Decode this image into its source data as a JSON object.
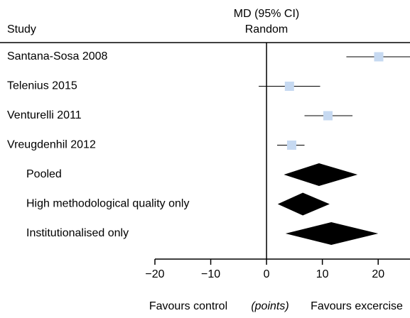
{
  "chart_data": {
    "type": "forest",
    "column_title": "Study",
    "effect_title": [
      "MD (95% CI)",
      "Random"
    ],
    "studies": [
      {
        "label": "Santana-Sosa 2008",
        "mean": 20.1,
        "lower": 14.3,
        "upper": 26
      },
      {
        "label": "Telenius 2015",
        "mean": 4.1,
        "lower": -1.4,
        "upper": 9.6
      },
      {
        "label": "Venturelli 2011",
        "mean": 11.0,
        "lower": 6.8,
        "upper": 15.4
      },
      {
        "label": "Vreugdenhil 2012",
        "mean": 4.5,
        "lower": 1.9,
        "upper": 6.8
      }
    ],
    "summaries": [
      {
        "label": "Pooled",
        "mean": 9.4,
        "lower": 3.1,
        "upper": 16.3
      },
      {
        "label": "High methodological quality only",
        "mean": 6.5,
        "lower": 2.0,
        "upper": 11.3
      },
      {
        "label": "Institutionalised only",
        "mean": 11.6,
        "lower": 3.4,
        "upper": 20.0
      }
    ],
    "study_color": "#c6d9f1",
    "summary_color": "#000000",
    "xlim": [
      -20,
      25.7
    ],
    "xticks": [
      {
        "value": -20,
        "label": "−20"
      },
      {
        "value": -10,
        "label": "−10"
      },
      0,
      10,
      20
    ],
    "x_footer": [
      "Favours control",
      "(points)",
      "Favours excercise"
    ]
  }
}
